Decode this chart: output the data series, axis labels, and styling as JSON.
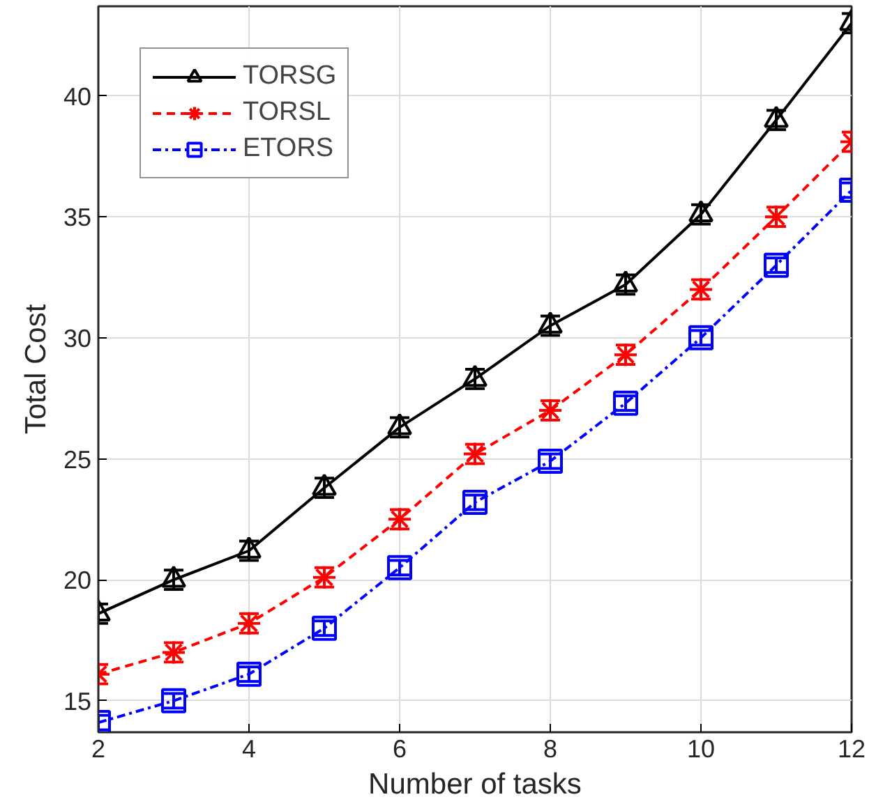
{
  "chart_data": {
    "type": "line",
    "xlabel": "Number of tasks",
    "ylabel": "Total Cost",
    "x": [
      2,
      3,
      4,
      5,
      6,
      7,
      8,
      9,
      10,
      11,
      12
    ],
    "series": [
      {
        "name": "TORSG",
        "color": "#000000",
        "marker": "triangle",
        "line_style": "solid",
        "values": [
          18.6,
          20.0,
          21.2,
          23.8,
          26.3,
          28.3,
          30.5,
          32.2,
          35.1,
          39.0,
          43.0
        ],
        "errors": [
          0.4,
          0.4,
          0.4,
          0.4,
          0.4,
          0.4,
          0.4,
          0.4,
          0.4,
          0.4,
          0.4
        ]
      },
      {
        "name": "TORSL",
        "color": "#ff0000",
        "marker": "cross",
        "line_style": "dashed",
        "values": [
          16.1,
          17.0,
          18.2,
          20.1,
          22.5,
          25.2,
          27.0,
          29.3,
          32.0,
          35.0,
          38.1
        ],
        "errors": [
          0.4,
          0.4,
          0.4,
          0.4,
          0.4,
          0.4,
          0.4,
          0.4,
          0.4,
          0.4,
          0.4
        ]
      },
      {
        "name": "ETORS",
        "color": "#0000ff",
        "marker": "square",
        "line_style": "dashdot",
        "values": [
          14.1,
          15.0,
          16.1,
          18.0,
          20.5,
          23.2,
          24.9,
          27.3,
          30.0,
          33.0,
          36.1
        ],
        "errors": [
          0.3,
          0.3,
          0.3,
          0.3,
          0.3,
          0.3,
          0.3,
          0.3,
          0.3,
          0.3,
          0.3
        ]
      }
    ],
    "xlim": [
      2,
      12
    ],
    "ylim": [
      13.7,
      43.7
    ],
    "xticks": [
      2,
      4,
      6,
      8,
      10,
      12
    ],
    "yticks": [
      15,
      20,
      25,
      30,
      35,
      40
    ],
    "grid": true,
    "legend": "top left"
  }
}
